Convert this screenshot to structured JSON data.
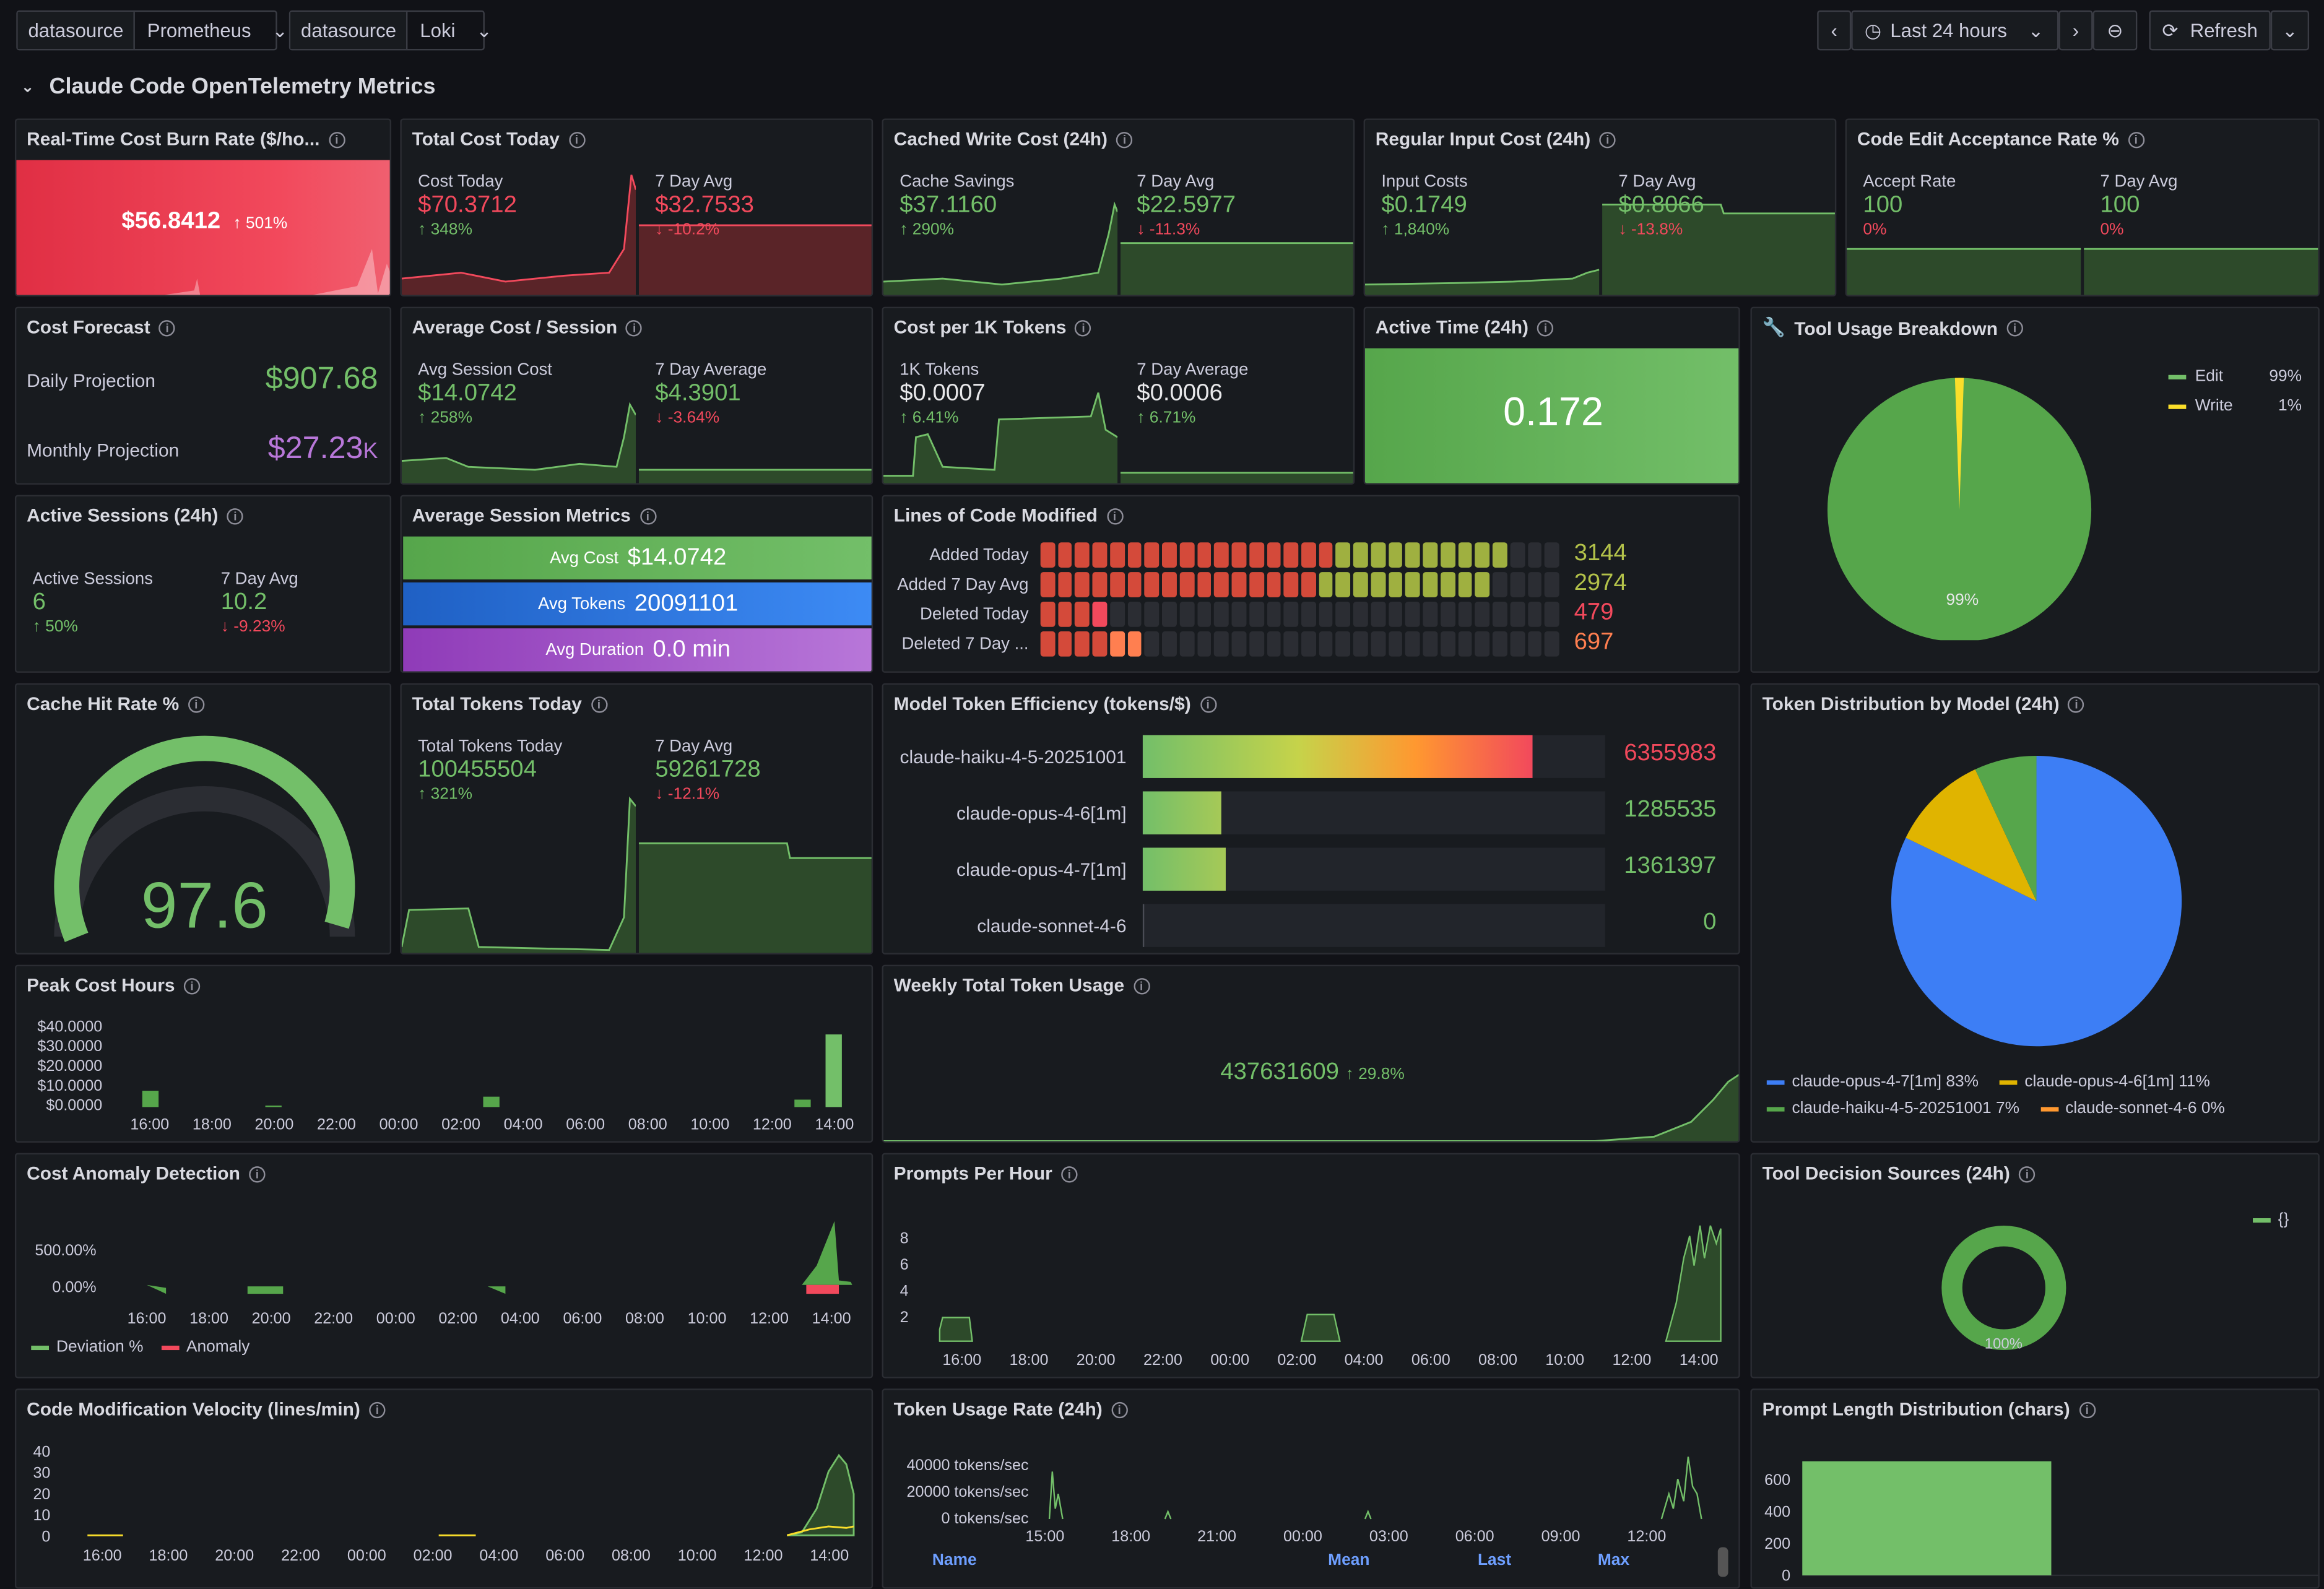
{
  "topbar": {
    "ds1_label": "datasource",
    "ds1_value": "Prometheus",
    "ds2_label": "datasource",
    "ds2_value": "Loki",
    "time_range": "Last 24 hours",
    "refresh": "Refresh"
  },
  "row_title": "Claude Code OpenTelemetry Metrics",
  "p_burn": {
    "title": "Real-Time Cost Burn Rate ($/ho...",
    "value": "$56.8412",
    "pct": "501%"
  },
  "p_total_cost": {
    "title": "Total Cost Today",
    "l1": "Cost Today",
    "v1": "$70.3712",
    "d1": "348%",
    "l2": "7 Day Avg",
    "v2": "$32.7533",
    "d2": "-10.2%"
  },
  "p_cached": {
    "title": "Cached Write Cost (24h)",
    "l1": "Cache Savings",
    "v1": "$37.1160",
    "d1": "290%",
    "l2": "7 Day Avg",
    "v2": "$22.5977",
    "d2": "-11.3%"
  },
  "p_input": {
    "title": "Regular Input Cost (24h)",
    "l1": "Input Costs",
    "v1": "$0.1749",
    "d1": "1,840%",
    "l2": "7 Day Avg",
    "v2": "$0.8066",
    "d2": "-13.8%"
  },
  "p_accept": {
    "title": "Code Edit Acceptance Rate %",
    "l1": "Accept Rate",
    "v1": "100",
    "d1": "0%",
    "l2": "7 Day Avg",
    "v2": "100",
    "d2": "0%"
  },
  "p_forecast": {
    "title": "Cost Forecast",
    "l1": "Daily Projection",
    "v1": "$907.68",
    "l2": "Monthly Projection",
    "v2": "$27.23",
    "v2u": "K"
  },
  "p_avgcost": {
    "title": "Average Cost / Session",
    "l1": "Avg Session Cost",
    "v1": "$14.0742",
    "d1": "258%",
    "l2": "7 Day Average",
    "v2": "$4.3901",
    "d2": "-3.64%"
  },
  "p_per1k": {
    "title": "Cost per 1K Tokens",
    "l1": "1K Tokens",
    "v1": "$0.0007",
    "d1": "6.41%",
    "l2": "7 Day Average",
    "v2": "$0.0006",
    "d2": "6.71%"
  },
  "p_active": {
    "title": "Active Time (24h)",
    "value": "0.172"
  },
  "p_tools": {
    "title": "Tool Usage Breakdown",
    "legend": [
      {
        "name": "Edit",
        "pct": "99%",
        "color": "#73bf69"
      },
      {
        "name": "Write",
        "pct": "1%",
        "color": "#fade2a"
      }
    ],
    "slice_label": "99%",
    "values": [
      99,
      1
    ]
  },
  "p_sessions": {
    "title": "Active Sessions (24h)",
    "l1": "Active Sessions",
    "v1": "6",
    "d1": "50%",
    "l2": "7 Day Avg",
    "v2": "10.2",
    "d2": "-9.23%"
  },
  "p_sessmetrics": {
    "title": "Average Session Metrics",
    "rows": [
      {
        "label": "Avg Cost",
        "value": "$14.0742"
      },
      {
        "label": "Avg Tokens",
        "value": "20091101"
      },
      {
        "label": "Avg Duration",
        "value": "0.0 min"
      }
    ]
  },
  "p_loc": {
    "title": "Lines of Code Modified",
    "rows": [
      {
        "label": "Added Today",
        "value": "3144",
        "frac": 0.9,
        "color": "#b3c24a"
      },
      {
        "label": "Added 7 Day Avg",
        "value": "2974",
        "frac": 0.86,
        "color": "#b3c24a"
      },
      {
        "label": "Deleted Today",
        "value": "479",
        "frac": 0.14,
        "color": "#f2495c"
      },
      {
        "label": "Deleted 7 Day ...",
        "value": "697",
        "frac": 0.2,
        "color": "#ff7f50"
      }
    ]
  },
  "p_cachehit": {
    "title": "Cache Hit Rate %",
    "value": "97.6",
    "frac": 0.976
  },
  "p_tokens": {
    "title": "Total Tokens Today",
    "l1": "Total Tokens Today",
    "v1": "100455504",
    "d1": "321%",
    "l2": "7 Day Avg",
    "v2": "59261728",
    "d2": "-12.1%"
  },
  "p_efficiency": {
    "title": "Model Token Efficiency (tokens/$)",
    "max": 7000000,
    "rows": [
      {
        "label": "claude-haiku-4-5-20251001",
        "value": "6355983",
        "num": 6355983
      },
      {
        "label": "claude-opus-4-6[1m]",
        "value": "1285535",
        "num": 1285535
      },
      {
        "label": "claude-opus-4-7[1m]",
        "value": "1361397",
        "num": 1361397
      },
      {
        "label": "claude-sonnet-4-6",
        "value": "0",
        "num": 0
      }
    ]
  },
  "p_tokdist": {
    "title": "Token Distribution by Model (24h)",
    "legend": [
      {
        "name": "claude-opus-4-7[1m]",
        "pct": "83%",
        "color": "#3d7ef5"
      },
      {
        "name": "claude-opus-4-6[1m]",
        "pct": "11%",
        "color": "#e0b400"
      },
      {
        "name": "claude-haiku-4-5-20251001",
        "pct": "7%",
        "color": "#56a64b"
      },
      {
        "name": "claude-sonnet-4-6",
        "pct": "0%",
        "color": "#ff9830"
      }
    ],
    "values": [
      83,
      11,
      7,
      0
    ]
  },
  "p_peak": {
    "title": "Peak Cost Hours",
    "yticks": [
      "$40.0000",
      "$30.0000",
      "$20.0000",
      "$10.0000",
      "$0.0000"
    ],
    "xticks": [
      "16:00",
      "18:00",
      "20:00",
      "22:00",
      "00:00",
      "02:00",
      "04:00",
      "06:00",
      "08:00",
      "10:00",
      "12:00",
      "14:00"
    ]
  },
  "p_weekly": {
    "title": "Weekly Total Token Usage",
    "value": "437631609",
    "pct": "29.8%"
  },
  "p_anomaly": {
    "title": "Cost Anomaly Detection",
    "yticks": [
      "500.00%",
      "0.00%"
    ],
    "xticks": [
      "16:00",
      "18:00",
      "20:00",
      "22:00",
      "00:00",
      "02:00",
      "04:00",
      "06:00",
      "08:00",
      "10:00",
      "12:00",
      "14:00"
    ],
    "legend": [
      {
        "name": "Deviation %",
        "color": "#73bf69"
      },
      {
        "name": "Anomaly",
        "color": "#f2495c"
      }
    ]
  },
  "p_prompts": {
    "title": "Prompts Per Hour",
    "yticks": [
      "8",
      "6",
      "4",
      "2"
    ],
    "xticks": [
      "16:00",
      "18:00",
      "20:00",
      "22:00",
      "00:00",
      "02:00",
      "04:00",
      "06:00",
      "08:00",
      "10:00",
      "12:00",
      "14:00"
    ]
  },
  "p_toolsrc": {
    "title": "Tool Decision Sources (24h)",
    "legend": "{}",
    "label": "100%"
  },
  "p_velocity": {
    "title": "Code Modification Velocity (lines/min)",
    "yticks": [
      "40",
      "30",
      "20",
      "10",
      "0"
    ],
    "xticks": [
      "16:00",
      "18:00",
      "20:00",
      "22:00",
      "00:00",
      "02:00",
      "04:00",
      "06:00",
      "08:00",
      "10:00",
      "12:00",
      "14:00"
    ]
  },
  "p_tokrate": {
    "title": "Token Usage Rate (24h)",
    "yticks": [
      "40000 tokens/sec",
      "20000 tokens/sec",
      "0 tokens/sec"
    ],
    "xticks": [
      "15:00",
      "18:00",
      "21:00",
      "00:00",
      "03:00",
      "06:00",
      "09:00",
      "12:00"
    ],
    "columns": [
      "Name",
      "Mean",
      "Last",
      "Max"
    ]
  },
  "p_promptlen": {
    "title": "Prompt Length Distribution (chars)",
    "yticks": [
      "600",
      "400",
      "200",
      "0"
    ]
  }
}
